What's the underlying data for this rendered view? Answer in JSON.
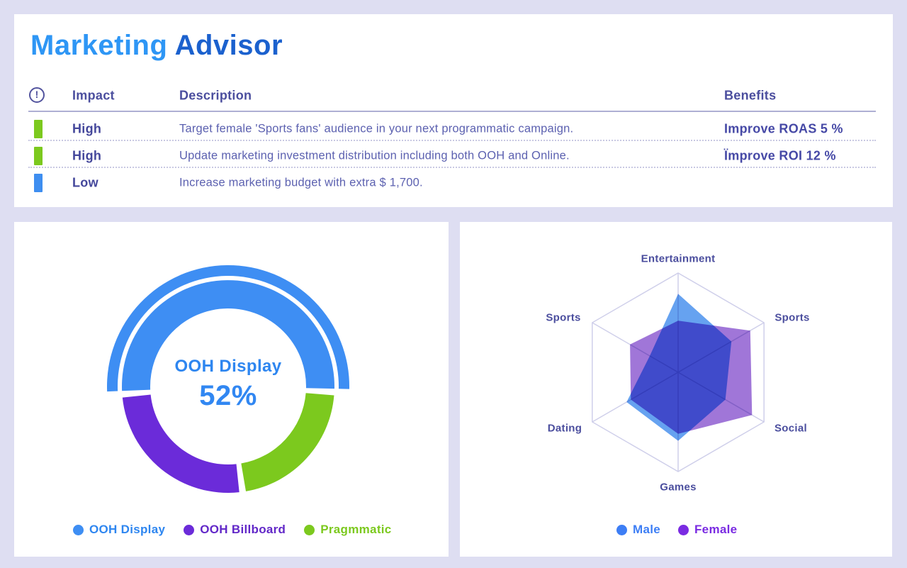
{
  "window": {
    "background": "#DEDEF2",
    "panel_background": "#FFFFFF"
  },
  "advisor_panel": {
    "title": {
      "part1": "Marketing",
      "part2": "Advisor"
    },
    "title_colors": {
      "part1": "#2E96F5",
      "part2": "#1B61CE"
    },
    "table": {
      "header": {
        "impact": "Impact",
        "description": "Description",
        "benefits": "Benefits"
      },
      "rows": [
        {
          "impact": "High",
          "impact_color": "#7CC91E",
          "description": "Target female 'Sports fans' audience in your next programmatic campaign.",
          "benefit": "Improve ROAS 5 %"
        },
        {
          "impact": "High",
          "impact_color": "#7CC91E",
          "description": "Update marketing investment distribution including both OOH and Online.",
          "benefit": "Ïmprove ROI 12 %"
        },
        {
          "impact": "Low",
          "impact_color": "#3E8EF0",
          "description": "Increase marketing budget with extra $ 1,700.",
          "benefit": ""
        }
      ]
    }
  },
  "chart_data": [
    {
      "type": "pie",
      "subtype": "donut",
      "center_label": "OOH Display",
      "center_value": "52%",
      "highlighted_segment": "OOH Display",
      "segments": [
        {
          "label": "OOH Display",
          "value": 52,
          "color": "#3E8EF3",
          "text_color": "#2E86F0",
          "highlighted": true
        },
        {
          "label": "OOH Billboard",
          "value": 26,
          "color": "#6B2BD9",
          "text_color": "#6228C8",
          "highlighted": false
        },
        {
          "label": "Pragmmatic",
          "value": 22,
          "color": "#7CC91E",
          "text_color": "#7CC91E",
          "highlighted": false
        }
      ],
      "legend_position": "bottom",
      "units": "percent"
    },
    {
      "type": "radar",
      "categories": [
        "Entertainment",
        "Sports",
        "Social",
        "Games",
        "Dating",
        "Sports"
      ],
      "max": 1,
      "grid": "hexagon-with-spokes",
      "series": [
        {
          "name": "Male",
          "color": "#3D7EF5",
          "fill": "#66A2F0",
          "values": [
            0.79,
            0.62,
            0.55,
            0.69,
            0.6,
            0.33
          ]
        },
        {
          "name": "Female",
          "color": "#7A2BE2",
          "fill": "#A076D8",
          "values": [
            0.52,
            0.84,
            0.86,
            0.62,
            0.55,
            0.56
          ]
        }
      ],
      "legend_position": "bottom"
    }
  ]
}
